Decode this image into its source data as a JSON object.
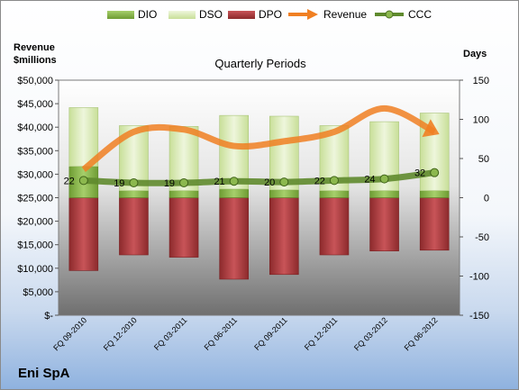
{
  "chart_data": {
    "type": "bar",
    "title": "Quarterly Periods",
    "company": "Eni SpA",
    "left_axis_title": [
      "Revenue",
      "$millions"
    ],
    "right_axis_title": "Days",
    "categories": [
      "FQ 09-2010",
      "FQ 12-2010",
      "FQ 03-2011",
      "FQ 06-2011",
      "FQ 09-2011",
      "FQ 12-2011",
      "FQ 03-2012",
      "FQ 06-2012"
    ],
    "left_ticks": [
      "$50,000",
      "$45,000",
      "$40,000",
      "$35,000",
      "$30,000",
      "$25,000",
      "$20,000",
      "$15,000",
      "$10,000",
      "$5,000",
      "$-"
    ],
    "right_ticks": [
      "150",
      "100",
      "50",
      "0",
      "-50",
      "-100",
      "-150"
    ],
    "left_ylim": [
      0,
      50000
    ],
    "right_ylim": [
      -150,
      150
    ],
    "series": [
      {
        "name": "DIO",
        "axis": "right",
        "values": [
          40,
          9,
          9,
          11,
          10,
          9,
          9,
          9
        ],
        "color": "#7aa83c"
      },
      {
        "name": "DSO",
        "axis": "right",
        "values": [
          75,
          83,
          82,
          94,
          94,
          83,
          88,
          99
        ],
        "color": "#d6e8b0"
      },
      {
        "name": "DPO",
        "axis": "right",
        "values": [
          -93,
          -73,
          -76,
          -104,
          -98,
          -73,
          -68,
          -67
        ],
        "color": "#a43a3c"
      },
      {
        "name": "Revenue",
        "axis": "left",
        "values": [
          31000,
          39000,
          39500,
          36000,
          37000,
          39000,
          44000,
          39000
        ],
        "color": "#f07f22"
      },
      {
        "name": "CCC",
        "axis": "right",
        "values": [
          22,
          19,
          19,
          21,
          20,
          22,
          24,
          32
        ],
        "color": "#5f8a2e"
      }
    ],
    "ccc_labels": [
      "22",
      "19",
      "19",
      "21",
      "20",
      "22",
      "24",
      "32"
    ]
  }
}
